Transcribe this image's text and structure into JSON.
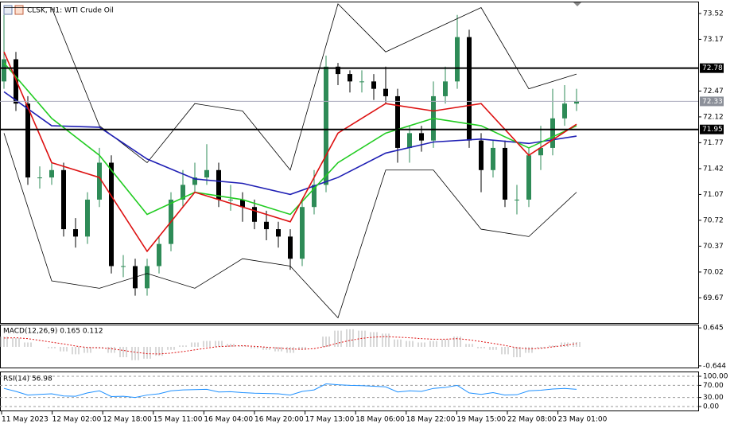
{
  "chart_data": [
    {
      "type": "candlestick",
      "title": "CLSK, H1: WTI Crude Oil",
      "open": [
        72.6,
        72.9,
        72.3,
        71.3,
        71.3,
        71.4,
        70.6,
        70.5,
        71.0,
        71.5,
        70.1,
        70.1,
        69.8,
        70.1,
        70.4,
        71.0,
        71.2,
        71.3,
        71.4,
        71.0,
        71.0,
        70.9,
        70.7,
        70.6,
        70.5,
        70.2,
        70.9,
        71.2,
        72.8,
        72.7,
        72.6,
        72.6,
        72.5,
        72.4,
        71.7,
        71.9,
        71.8,
        72.4,
        72.6,
        73.2,
        71.8,
        71.4,
        71.7,
        71.0,
        71.0,
        71.6,
        71.7,
        72.1,
        72.3
      ],
      "high": [
        73.5,
        73.0,
        72.4,
        71.45,
        71.5,
        71.5,
        70.75,
        71.1,
        71.7,
        71.6,
        70.25,
        70.2,
        70.2,
        70.5,
        71.1,
        71.4,
        71.5,
        71.75,
        71.5,
        71.2,
        71.1,
        71.0,
        70.85,
        70.7,
        70.6,
        71.0,
        71.4,
        72.95,
        72.85,
        72.75,
        72.75,
        72.7,
        72.8,
        72.5,
        72.0,
        72.0,
        72.6,
        72.8,
        73.5,
        73.3,
        71.9,
        71.8,
        71.8,
        71.2,
        71.7,
        72.0,
        72.5,
        72.55,
        72.5
      ],
      "low": [
        72.5,
        72.2,
        71.2,
        71.15,
        71.2,
        70.5,
        70.35,
        70.4,
        70.9,
        70.0,
        69.95,
        69.7,
        69.7,
        70.0,
        70.3,
        70.9,
        71.1,
        71.2,
        70.9,
        70.85,
        70.7,
        70.6,
        70.45,
        70.35,
        70.05,
        70.1,
        70.8,
        71.1,
        72.55,
        72.45,
        72.45,
        72.35,
        72.3,
        71.5,
        71.5,
        71.65,
        71.7,
        72.3,
        72.5,
        71.7,
        71.1,
        71.3,
        70.9,
        70.8,
        70.9,
        71.4,
        71.6,
        72.0,
        72.2
      ],
      "close": [
        72.9,
        72.3,
        71.3,
        71.3,
        71.4,
        70.6,
        70.5,
        71.0,
        71.5,
        70.1,
        70.1,
        69.8,
        70.1,
        70.4,
        71.0,
        71.2,
        71.3,
        71.4,
        71.0,
        71.0,
        70.9,
        70.7,
        70.6,
        70.5,
        70.2,
        70.9,
        71.2,
        72.8,
        72.7,
        72.6,
        72.6,
        72.5,
        72.4,
        71.7,
        71.9,
        71.8,
        72.4,
        72.6,
        73.2,
        71.8,
        71.4,
        71.7,
        71.0,
        71.0,
        71.6,
        71.7,
        72.1,
        72.3,
        72.33
      ],
      "up_color": "#2e8b57",
      "down_color": "#000000",
      "lines": [
        {
          "color": "#000000",
          "values": [
            73.6,
            73.6,
            72.0,
            71.5,
            72.3,
            72.2,
            71.4,
            73.65,
            73.0,
            73.3,
            73.6,
            72.5,
            72.7
          ]
        },
        {
          "color": "#000000",
          "values": [
            71.9,
            69.9,
            69.8,
            70.0,
            69.8,
            70.2,
            70.1,
            69.4,
            71.4,
            71.4,
            70.6,
            70.5,
            71.1
          ]
        },
        {
          "color": "#1f1fb4",
          "values": [
            72.46,
            72.0,
            71.98,
            71.55,
            71.28,
            71.22,
            71.07,
            71.3,
            71.63,
            71.78,
            71.82,
            71.76,
            71.86
          ]
        },
        {
          "color": "#22cc22",
          "values": [
            72.85,
            72.1,
            71.6,
            70.8,
            71.1,
            71.0,
            70.8,
            71.5,
            71.9,
            72.1,
            72.0,
            71.7,
            72.0
          ]
        },
        {
          "color": "#dd1111",
          "values": [
            73.0,
            71.5,
            71.3,
            70.3,
            71.1,
            70.9,
            70.7,
            71.9,
            72.3,
            72.2,
            72.3,
            71.6,
            72.02
          ]
        }
      ],
      "levels": [
        72.78,
        71.95
      ],
      "last_price": 72.33,
      "ylim": [
        69.33,
        73.67
      ],
      "yticks": [
        73.52,
        73.17,
        72.47,
        72.12,
        71.77,
        71.42,
        71.07,
        70.72,
        70.37,
        70.02,
        69.67
      ]
    },
    {
      "type": "macd",
      "title": "MACD(12,26,9) 0.165 0.112",
      "values": [
        0.35,
        0.3,
        0.15,
        0.0,
        -0.05,
        -0.15,
        -0.25,
        -0.2,
        -0.05,
        -0.2,
        -0.35,
        -0.45,
        -0.4,
        -0.3,
        -0.1,
        0.05,
        0.15,
        0.2,
        0.2,
        0.1,
        0.05,
        -0.05,
        -0.1,
        -0.15,
        -0.2,
        -0.1,
        0.0,
        0.35,
        0.55,
        0.6,
        0.55,
        0.5,
        0.45,
        0.25,
        0.2,
        0.15,
        0.2,
        0.25,
        0.35,
        0.1,
        -0.05,
        -0.1,
        -0.25,
        -0.35,
        -0.2,
        -0.05,
        0.05,
        0.15,
        0.165
      ],
      "signal": [
        0.3,
        0.31,
        0.28,
        0.22,
        0.16,
        0.1,
        0.03,
        -0.02,
        -0.03,
        -0.06,
        -0.12,
        -0.18,
        -0.23,
        -0.24,
        -0.21,
        -0.16,
        -0.1,
        -0.04,
        0.01,
        0.03,
        0.04,
        0.02,
        -0.01,
        -0.04,
        -0.07,
        -0.08,
        -0.06,
        0.02,
        0.13,
        0.22,
        0.29,
        0.33,
        0.35,
        0.33,
        0.31,
        0.28,
        0.26,
        0.26,
        0.28,
        0.24,
        0.18,
        0.12,
        0.05,
        -0.03,
        -0.07,
        -0.05,
        0.0,
        0.05,
        0.112
      ],
      "color": "#b0b0b0",
      "signal_color": "#dd1111",
      "ylim": [
        -0.7,
        0.73
      ],
      "yticks": [
        0.645,
        -0.644
      ]
    },
    {
      "type": "line",
      "title": "RSI(14) 56.98",
      "values": [
        60,
        50,
        38,
        40,
        42,
        35,
        34,
        45,
        52,
        33,
        34,
        30,
        38,
        42,
        52,
        55,
        56,
        57,
        48,
        49,
        46,
        44,
        43,
        42,
        38,
        50,
        55,
        75,
        72,
        70,
        69,
        67,
        65,
        48,
        52,
        50,
        60,
        63,
        70,
        45,
        40,
        46,
        38,
        39,
        52,
        54,
        58,
        60,
        56.98
      ],
      "color": "#1e90ff",
      "ylim": [
        -10.5,
        110.5
      ],
      "yticks": [
        {
          "value": 100,
          "label": "100.00"
        },
        {
          "value": 70,
          "label": "70.00"
        },
        {
          "value": 30,
          "label": "30.00"
        },
        {
          "value": 0,
          "label": "0.00"
        }
      ],
      "time_labels": [
        "11 May 2023",
        "12 May 02:00",
        "12 May 18:00",
        "15 May 11:00",
        "16 May 04:00",
        "16 May 20:00",
        "17 May 13:00",
        "18 May 06:00",
        "18 May 22:00",
        "19 May 15:00",
        "22 May 08:00",
        "23 May 01:00"
      ]
    }
  ]
}
